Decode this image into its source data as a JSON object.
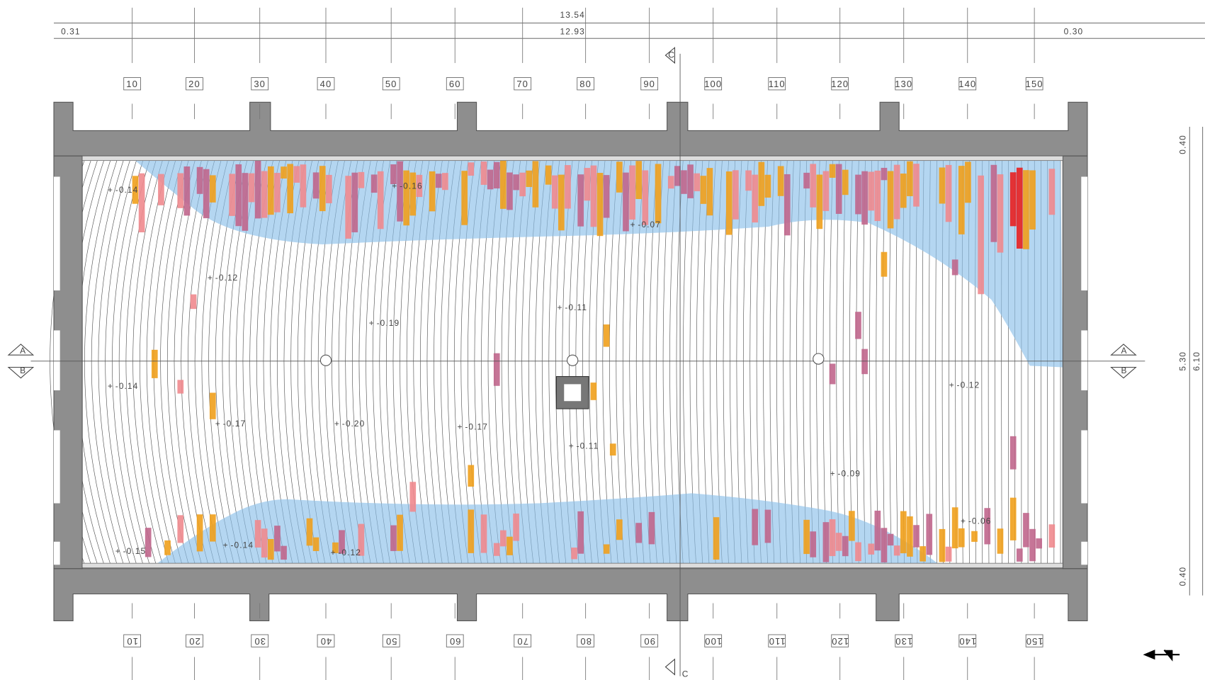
{
  "dimensions": {
    "top_total": "13.54",
    "top_inner": "12.93",
    "left_offset": "0.31",
    "right_offset": "0.30",
    "right_top": "0.40",
    "right_mid": "5.30",
    "right_total": "6.10",
    "right_bottom": "0.40"
  },
  "grid_labels": [
    "10",
    "20",
    "30",
    "40",
    "50",
    "60",
    "70",
    "80",
    "90",
    "100",
    "110",
    "120",
    "130",
    "140",
    "150"
  ],
  "section_markers": {
    "top": "C",
    "bottom": "C",
    "left_upper": "A",
    "left_lower": "B",
    "right_upper": "A",
    "right_lower": "B"
  },
  "elevations": [
    "-0.14",
    "-0.16",
    "-0.07",
    "-0.12",
    "-0.19",
    "-0.11",
    "-0.14",
    "-0.17",
    "-0.20",
    "-0.17",
    "-0.11",
    "-0.12",
    "-0.09",
    "-0.06",
    "-0.15",
    "-0.14",
    "-0.12"
  ]
}
